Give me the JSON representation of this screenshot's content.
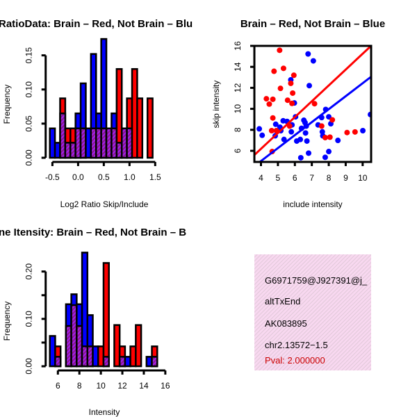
{
  "chart_data": [
    {
      "type": "bar",
      "title": "RatioData: Brain – Red, Not Brain – Blu",
      "xlabel": "Log2 Ratio Skip/Include",
      "ylabel": "Frequency",
      "xlim": [
        -0.55,
        1.55
      ],
      "ylim": [
        0,
        0.17
      ],
      "xticks": [
        "-0.5",
        "0.0",
        "0.5",
        "1.0",
        "1.5"
      ],
      "xtick_values": [
        -0.5,
        0,
        0.5,
        1.0,
        1.5
      ],
      "yticks": [
        "0.00",
        "0.05",
        "0.10",
        "0.15"
      ],
      "ytick_values": [
        0,
        0.05,
        0.1,
        0.15
      ],
      "bin_start": -0.55,
      "bin_width": 0.1,
      "series": [
        {
          "name": "Not Brain",
          "color": "#0000ff",
          "values": [
            0.043,
            0.022,
            0.065,
            0.022,
            0.022,
            0.065,
            0.109,
            0.043,
            0.152,
            0.065,
            0.174,
            0.043,
            0.065,
            0.022,
            0.043,
            0.043,
            0,
            0,
            0,
            0
          ]
        },
        {
          "name": "Brain",
          "color": "#ff0000",
          "values": [
            0,
            0,
            0.087,
            0.043,
            0.043,
            0.043,
            0.043,
            0,
            0.043,
            0.043,
            0.043,
            0.043,
            0.043,
            0.13,
            0.043,
            0.087,
            0.13,
            0.087,
            0,
            0.087
          ]
        }
      ]
    },
    {
      "type": "scatter",
      "title": "Brain – Red, Not Brain – Blue",
      "xlabel": "include intensity",
      "ylabel": "skip intensity",
      "xlim": [
        3.61,
        10.5
      ],
      "ylim": [
        4.94,
        16
      ],
      "xticks": [
        "4",
        "5",
        "6",
        "7",
        "8",
        "9",
        "10"
      ],
      "xtick_values": [
        4,
        5,
        6,
        7,
        8,
        9,
        10
      ],
      "yticks": [
        "6",
        "8",
        "10",
        "12",
        "14",
        "16"
      ],
      "ytick_values": [
        6,
        8,
        10,
        12,
        14,
        16
      ],
      "series": [
        {
          "name": "Brain",
          "color": "#ff0000",
          "points": [
            [
              5.1,
              15.58
            ],
            [
              4.77,
              13.58
            ],
            [
              5.33,
              13.86
            ],
            [
              5.94,
              13.2
            ],
            [
              5.15,
              11.95
            ],
            [
              5.76,
              12.43
            ],
            [
              5.87,
              11.5
            ],
            [
              4.32,
              10.96
            ],
            [
              4.7,
              10.91
            ],
            [
              4.49,
              10.45
            ],
            [
              5.57,
              10.82
            ],
            [
              5.83,
              10.52
            ],
            [
              7.16,
              10.49
            ],
            [
              4.7,
              9.13
            ],
            [
              4.63,
              7.92
            ],
            [
              4.91,
              7.92
            ],
            [
              4.66,
              5.93
            ],
            [
              8.21,
              8.95
            ],
            [
              7.58,
              8.36
            ],
            [
              7.79,
              7.26
            ],
            [
              8.07,
              7.3
            ],
            [
              9.08,
              7.74
            ],
            [
              9.55,
              7.8
            ],
            [
              5.69,
              8.36
            ]
          ],
          "fit": {
            "slope": 1.51,
            "intercept": 0.15
          }
        },
        {
          "name": "Not Brain",
          "color": "#0000ff",
          "points": [
            [
              3.9,
              8.09
            ],
            [
              4.07,
              7.48
            ],
            [
              6.78,
              15.23
            ],
            [
              7.09,
              14.57
            ],
            [
              5.76,
              12.76
            ],
            [
              6.85,
              12.21
            ],
            [
              5.97,
              10.56
            ],
            [
              7.82,
              9.94
            ],
            [
              8.0,
              9.24
            ],
            [
              7.58,
              9.17
            ],
            [
              10.46,
              9.46
            ],
            [
              8.12,
              8.58
            ],
            [
              6.04,
              9.24
            ],
            [
              4.87,
              8.53
            ],
            [
              5.31,
              8.86
            ],
            [
              5.54,
              8.8
            ],
            [
              5.83,
              8.47
            ],
            [
              5.12,
              8.25
            ],
            [
              5.17,
              7.92
            ],
            [
              4.84,
              7.43
            ],
            [
              5.36,
              7.08
            ],
            [
              5.79,
              7.81
            ],
            [
              6.11,
              6.93
            ],
            [
              6.32,
              7.08
            ],
            [
              6.39,
              8.14
            ],
            [
              6.53,
              8.91
            ],
            [
              6.6,
              8.69
            ],
            [
              6.67,
              8.36
            ],
            [
              6.63,
              7.7
            ],
            [
              6.71,
              6.93
            ],
            [
              7.37,
              8.47
            ],
            [
              7.62,
              7.81
            ],
            [
              7.65,
              7.43
            ],
            [
              8.54,
              6.99
            ],
            [
              10.01,
              7.92
            ],
            [
              6.81,
              5.78
            ],
            [
              6.35,
              5.34
            ],
            [
              7.79,
              5.38
            ],
            [
              8.0,
              5.93
            ]
          ],
          "fit": {
            "slope": 1.236,
            "intercept": 0.08
          }
        }
      ]
    },
    {
      "type": "bar",
      "title": "ne Itensity: Brain – Red, Not Brain – B",
      "xlabel": "Intensity",
      "ylabel": "Frequency",
      "xlim": [
        5.25,
        15.75
      ],
      "ylim": [
        0,
        0.245
      ],
      "xticks": [
        "6",
        "8",
        "10",
        "12",
        "14",
        "16"
      ],
      "xtick_values": [
        6,
        8,
        10,
        12,
        14,
        16
      ],
      "yticks": [
        "0.00",
        "0.10",
        "0.20"
      ],
      "ytick_values": [
        0,
        0.05,
        0.1,
        0.15,
        0.2
      ],
      "ytick_labels_at": [
        0,
        0.1,
        0.2
      ],
      "bin_start": 5.25,
      "bin_width": 0.5,
      "series": [
        {
          "name": "Not Brain",
          "color": "#0000ff",
          "values": [
            0.064,
            0.02,
            0,
            0.131,
            0.152,
            0.131,
            0.24,
            0.108,
            0.042,
            0,
            0.02,
            0,
            0,
            0.02,
            0.02,
            0,
            0,
            0,
            0.02,
            0.02
          ]
        },
        {
          "name": "Brain",
          "color": "#ff0000",
          "values": [
            0,
            0.042,
            0,
            0.085,
            0.129,
            0.085,
            0.042,
            0.042,
            0,
            0.042,
            0.218,
            0,
            0.087,
            0.042,
            0,
            0.042,
            0.087,
            0,
            0,
            0.042
          ]
        }
      ]
    }
  ],
  "info_panel": {
    "lines": [
      "G6971759@J927391@j_",
      "altTxEnd",
      "AK083895",
      "chr2.13572−1.5"
    ],
    "pval": "Pval: 2.000000",
    "pval_color": "#cc0000"
  }
}
